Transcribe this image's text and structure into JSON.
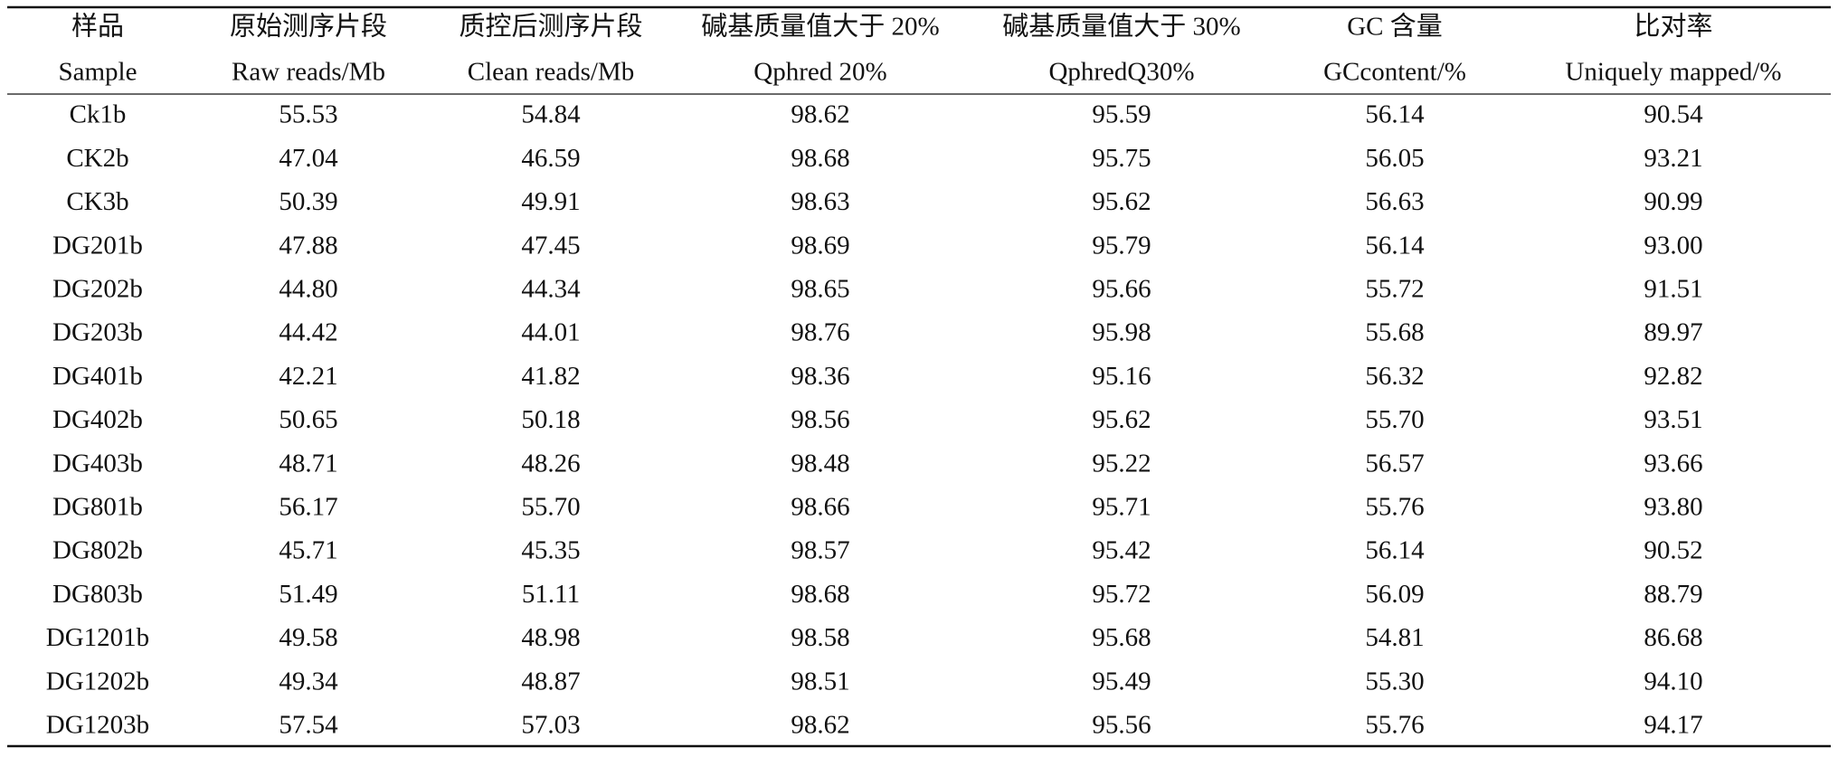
{
  "table": {
    "headers": [
      {
        "zh": "样品",
        "en": "Sample"
      },
      {
        "zh": "原始测序片段",
        "en": "Raw reads/Mb"
      },
      {
        "zh": "质控后测序片段",
        "en": "Clean reads/Mb"
      },
      {
        "zh": "碱基质量值大于 20%",
        "en": "Qphred 20%"
      },
      {
        "zh": "碱基质量值大于 30%",
        "en": "QphredQ30%"
      },
      {
        "zh": "GC 含量",
        "en": "GCcontent/%"
      },
      {
        "zh": "比对率",
        "en": "Uniquely mapped/%"
      }
    ],
    "rows": [
      [
        "Ck1b",
        "55.53",
        "54.84",
        "98.62",
        "95.59",
        "56.14",
        "90.54"
      ],
      [
        "CK2b",
        "47.04",
        "46.59",
        "98.68",
        "95.75",
        "56.05",
        "93.21"
      ],
      [
        "CK3b",
        "50.39",
        "49.91",
        "98.63",
        "95.62",
        "56.63",
        "90.99"
      ],
      [
        "DG201b",
        "47.88",
        "47.45",
        "98.69",
        "95.79",
        "56.14",
        "93.00"
      ],
      [
        "DG202b",
        "44.80",
        "44.34",
        "98.65",
        "95.66",
        "55.72",
        "91.51"
      ],
      [
        "DG203b",
        "44.42",
        "44.01",
        "98.76",
        "95.98",
        "55.68",
        "89.97"
      ],
      [
        "DG401b",
        "42.21",
        "41.82",
        "98.36",
        "95.16",
        "56.32",
        "92.82"
      ],
      [
        "DG402b",
        "50.65",
        "50.18",
        "98.56",
        "95.62",
        "55.70",
        "93.51"
      ],
      [
        "DG403b",
        "48.71",
        "48.26",
        "98.48",
        "95.22",
        "56.57",
        "93.66"
      ],
      [
        "DG801b",
        "56.17",
        "55.70",
        "98.66",
        "95.71",
        "55.76",
        "93.80"
      ],
      [
        "DG802b",
        "45.71",
        "45.35",
        "98.57",
        "95.42",
        "56.14",
        "90.52"
      ],
      [
        "DG803b",
        "51.49",
        "51.11",
        "98.68",
        "95.72",
        "56.09",
        "88.79"
      ],
      [
        "DG1201b",
        "49.58",
        "48.98",
        "98.58",
        "95.68",
        "54.81",
        "86.68"
      ],
      [
        "DG1202b",
        "49.34",
        "48.87",
        "98.51",
        "95.49",
        "55.30",
        "94.10"
      ],
      [
        "DG1203b",
        "57.54",
        "57.03",
        "98.62",
        "95.56",
        "55.76",
        "94.17"
      ]
    ]
  }
}
